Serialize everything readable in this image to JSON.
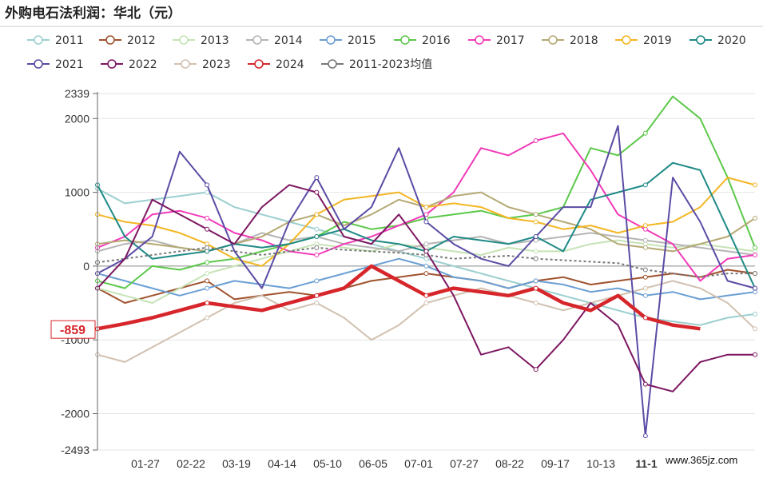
{
  "watermark": "www.365jz.com",
  "chart_data": {
    "type": "line",
    "title": "外购电石法利润：华北（元）",
    "xlabel": "",
    "ylabel": "",
    "ylim": [
      -2493,
      2339
    ],
    "yticks": [
      -2493,
      -2000,
      -1000,
      0,
      1000,
      2000,
      2339
    ],
    "xtick_labels": [
      "01-27",
      "02-22",
      "03-19",
      "04-14",
      "05-10",
      "06-05",
      "07-01",
      "07-27",
      "08-22",
      "09-17",
      "10-13",
      "11-1"
    ],
    "grid": "horizontal",
    "legend_position": "top",
    "latest_label": "-859",
    "series": [
      {
        "name": "2011",
        "color": "#9ccfcf",
        "values": [
          1050,
          850,
          900,
          950,
          1000,
          800,
          700,
          600,
          500,
          400,
          300,
          200,
          100,
          0,
          -100,
          -200,
          -300,
          -400,
          -500,
          -600,
          -700,
          -750,
          -800,
          -700,
          -650
        ]
      },
      {
        "name": "2012",
        "color": "#a0522d",
        "values": [
          -300,
          -500,
          -400,
          -300,
          -200,
          -450,
          -400,
          -350,
          -400,
          -300,
          -200,
          -150,
          -100,
          -150,
          -200,
          -300,
          -200,
          -150,
          -250,
          -200,
          -150,
          -100,
          -150,
          -50,
          -100
        ]
      },
      {
        "name": "2013",
        "color": "#c5e3b5",
        "values": [
          -300,
          -400,
          -500,
          -300,
          -100,
          0,
          100,
          200,
          300,
          250,
          200,
          300,
          250,
          200,
          150,
          250,
          200,
          200,
          300,
          350,
          300,
          250,
          300,
          250,
          200
        ]
      },
      {
        "name": "2014",
        "color": "#b5b5b5",
        "values": [
          200,
          300,
          350,
          250,
          200,
          300,
          450,
          350,
          400,
          300,
          250,
          200,
          300,
          350,
          400,
          300,
          350,
          400,
          450,
          400,
          350,
          300,
          250,
          200,
          150
        ]
      },
      {
        "name": "2015",
        "color": "#6b9fd4",
        "values": [
          -100,
          -200,
          -300,
          -400,
          -300,
          -200,
          -250,
          -300,
          -200,
          -100,
          0,
          100,
          0,
          -150,
          -200,
          -300,
          -200,
          -250,
          -350,
          -300,
          -400,
          -350,
          -450,
          -400,
          -350
        ]
      },
      {
        "name": "2016",
        "color": "#5cc84a",
        "values": [
          -200,
          -300,
          0,
          -50,
          50,
          100,
          200,
          300,
          400,
          600,
          500,
          550,
          650,
          700,
          750,
          650,
          700,
          800,
          1600,
          1500,
          1800,
          2300,
          2000,
          1200,
          250
        ]
      },
      {
        "name": "2017",
        "color": "#f23ab8",
        "values": [
          250,
          400,
          700,
          750,
          650,
          450,
          350,
          200,
          150,
          300,
          400,
          550,
          700,
          1000,
          1600,
          1500,
          1700,
          1800,
          1300,
          700,
          500,
          300,
          -200,
          100,
          150
        ]
      },
      {
        "name": "2018",
        "color": "#b5a974",
        "values": [
          300,
          350,
          300,
          250,
          200,
          300,
          400,
          600,
          700,
          550,
          700,
          900,
          800,
          950,
          1000,
          800,
          700,
          600,
          500,
          300,
          250,
          200,
          300,
          400,
          650
        ]
      },
      {
        "name": "2019",
        "color": "#f3b623",
        "values": [
          700,
          600,
          550,
          450,
          300,
          100,
          0,
          300,
          700,
          900,
          950,
          1000,
          800,
          850,
          800,
          650,
          600,
          500,
          550,
          450,
          550,
          600,
          800,
          1200,
          1100
        ]
      },
      {
        "name": "2020",
        "color": "#1f8a86",
        "values": [
          1100,
          400,
          100,
          150,
          200,
          300,
          250,
          300,
          400,
          500,
          350,
          300,
          200,
          400,
          350,
          300,
          400,
          200,
          900,
          1000,
          1100,
          1400,
          1300,
          500,
          -300
        ]
      },
      {
        "name": "2021",
        "color": "#5b4ba5",
        "values": [
          -100,
          100,
          400,
          1550,
          1100,
          200,
          -300,
          600,
          1200,
          500,
          800,
          1600,
          600,
          300,
          100,
          0,
          400,
          800,
          800,
          1900,
          -2300,
          1200,
          600,
          -200,
          -300
        ]
      },
      {
        "name": "2022",
        "color": "#7d1761",
        "values": [
          -300,
          100,
          900,
          700,
          500,
          300,
          800,
          1100,
          1000,
          400,
          300,
          700,
          200,
          -400,
          -1200,
          -1100,
          -1400,
          -1000,
          -500,
          -800,
          -1600,
          -1700,
          -1300,
          -1200,
          -1200
        ]
      },
      {
        "name": "2023",
        "color": "#d1c1b0",
        "values": [
          -1200,
          -1300,
          -1100,
          -900,
          -700,
          -500,
          -400,
          -600,
          -500,
          -700,
          -1000,
          -800,
          -500,
          -400,
          -300,
          -400,
          -500,
          -600,
          -500,
          -400,
          -300,
          -200,
          -300,
          -500,
          -850
        ]
      },
      {
        "name": "2024",
        "color": "#d7262b",
        "values": [
          -850,
          -780,
          -700,
          -600,
          -500,
          -550,
          -600,
          -500,
          -400,
          -300,
          0,
          -200,
          -400,
          -300,
          -350,
          -400,
          -300,
          -500,
          -600,
          -400,
          -700,
          -800,
          -850,
          null,
          null
        ]
      },
      {
        "name": "2011-2023均值",
        "color": "#777777",
        "values": [
          50,
          100,
          150,
          200,
          250,
          200,
          150,
          200,
          250,
          220,
          200,
          180,
          150,
          100,
          120,
          140,
          100,
          80,
          60,
          40,
          -50,
          -100,
          -150,
          -100,
          -100
        ]
      }
    ]
  }
}
